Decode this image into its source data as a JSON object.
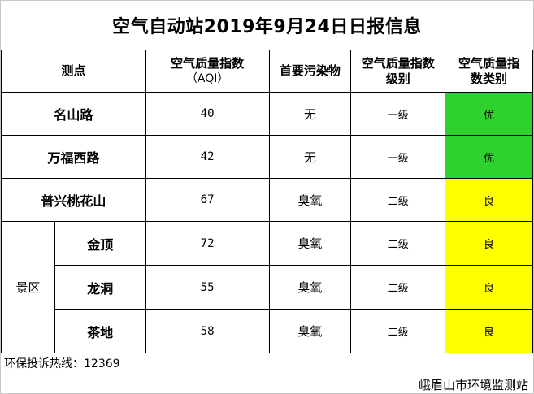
{
  "title": "空气自动站2019年9月24日日报信息",
  "headers": {
    "station": "测点",
    "aqi_line1": "空气质量指数",
    "aqi_line2": "（AQI）",
    "pollutant": "首要污染物",
    "level_line1": "空气质量指数",
    "level_line2": "级别",
    "category_line1": "空气质量指",
    "category_line2": "数类别"
  },
  "scenic_group": "景区",
  "rows": [
    {
      "station": "名山路",
      "aqi": "40",
      "pollutant": "无",
      "level": "一级",
      "category": "优",
      "category_color": "#2ed12e"
    },
    {
      "station": "万福西路",
      "aqi": "42",
      "pollutant": "无",
      "level": "一级",
      "category": "优",
      "category_color": "#2ed12e"
    },
    {
      "station": "普兴桃花山",
      "aqi": "67",
      "pollutant": "臭氧",
      "level": "二级",
      "category": "良",
      "category_color": "#ffff00"
    },
    {
      "station": "金顶",
      "aqi": "72",
      "pollutant": "臭氧",
      "level": "二级",
      "category": "良",
      "category_color": "#ffff00"
    },
    {
      "station": "龙洞",
      "aqi": "55",
      "pollutant": "臭氧",
      "level": "二级",
      "category": "良",
      "category_color": "#ffff00"
    },
    {
      "station": "茶地",
      "aqi": "58",
      "pollutant": "臭氧",
      "level": "二级",
      "category": "良",
      "category_color": "#ffff00"
    }
  ],
  "hotline": "环保投诉热线：12369",
  "organization": "峨眉山市环境监测站"
}
